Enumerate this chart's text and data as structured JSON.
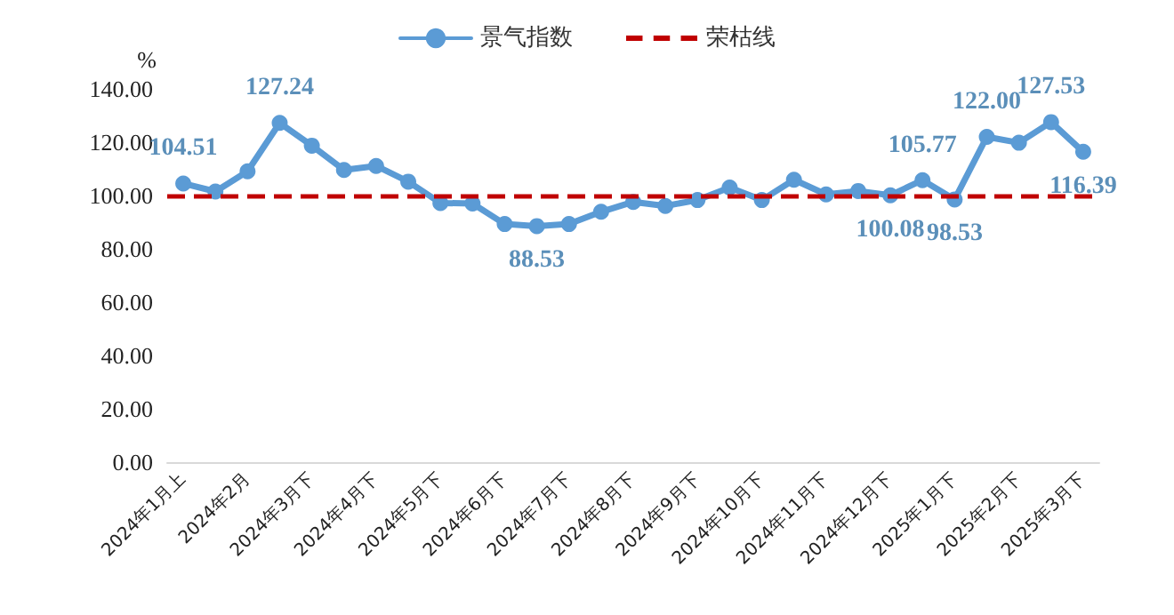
{
  "chart_data": {
    "type": "line",
    "ylabel": "%",
    "categories": [
      "2024年1月上",
      null,
      "2024年2月",
      null,
      "2024年3月下",
      null,
      "2024年4月下",
      null,
      "2024年5月下",
      null,
      "2024年6月下",
      null,
      "2024年7月下",
      null,
      "2024年8月下",
      null,
      "2024年9月下",
      null,
      "2024年10月下",
      null,
      "2024年11月下",
      null,
      "2024年12月下",
      null,
      "2025年1月下",
      null,
      "2025年2月下",
      null,
      "2025年3月下"
    ],
    "series": [
      {
        "name": "景气指数",
        "color": "#5b9bd5",
        "values": [
          104.51,
          101.5,
          109.1,
          127.24,
          118.7,
          109.6,
          111.1,
          105.2,
          97.2,
          97.0,
          89.3,
          88.53,
          89.3,
          93.9,
          97.6,
          96.1,
          98.3,
          103.0,
          98.3,
          105.9,
          100.4,
          101.7,
          100.08,
          105.77,
          98.53,
          122.0,
          119.8,
          127.53,
          116.39
        ],
        "value_labels": [
          "104.51",
          null,
          null,
          "127.24",
          null,
          null,
          null,
          null,
          null,
          null,
          null,
          "88.53",
          null,
          null,
          null,
          null,
          null,
          null,
          null,
          null,
          null,
          null,
          "100.08",
          "105.77",
          "98.53",
          "122.00",
          null,
          "127.53",
          "116.39"
        ]
      }
    ],
    "ref_lines": [
      {
        "axis": "y",
        "value": 100,
        "label": "荣枯线",
        "color": "#c00000",
        "line_style": "dashed"
      }
    ],
    "ylim": [
      0,
      140
    ],
    "yticks": [
      {
        "value": 0,
        "label": "0.00"
      },
      {
        "value": 20,
        "label": "20.00"
      },
      {
        "value": 40,
        "label": "40.00"
      },
      {
        "value": 60,
        "label": "60.00"
      },
      {
        "value": 80,
        "label": "80.00"
      },
      {
        "value": 100,
        "label": "100.00"
      },
      {
        "value": 120,
        "label": "120.00"
      },
      {
        "value": 140,
        "label": "140.00"
      }
    ],
    "grid": false,
    "legend": "top",
    "marker": "circle",
    "line_style": "solid"
  }
}
